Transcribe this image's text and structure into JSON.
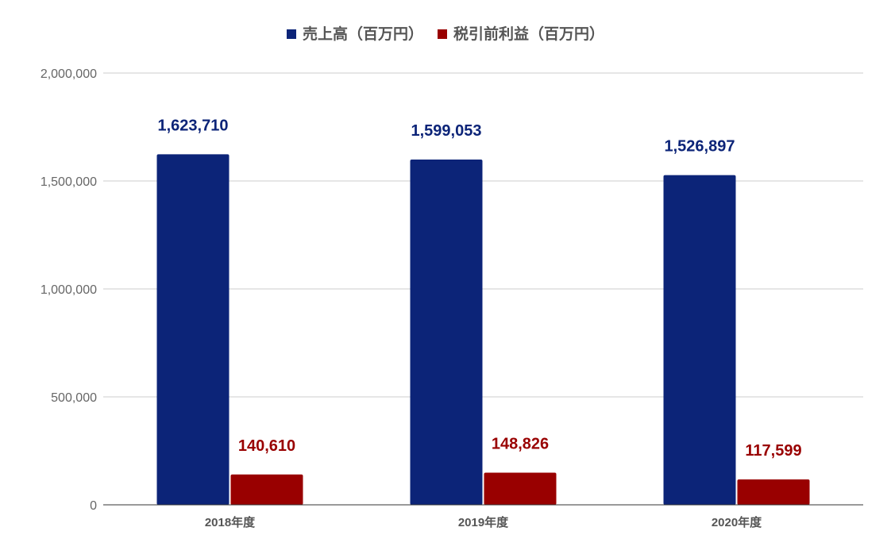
{
  "chart_data": {
    "type": "bar",
    "categories": [
      "2018年度",
      "2019年度",
      "2020年度"
    ],
    "series": [
      {
        "name": "売上高（百万円）",
        "color": "#0c2478",
        "values": [
          1623710,
          1599053,
          1526897
        ]
      },
      {
        "name": "税引前利益（百万円）",
        "color": "#990000",
        "values": [
          140610,
          148826,
          117599
        ]
      }
    ],
    "y_ticks": [
      "0",
      "500,000",
      "1,000,000",
      "1,500,000",
      "2,000,000"
    ],
    "ylim": [
      0,
      2000000
    ],
    "grid": true,
    "legend_position": "top-center",
    "data_labels": true
  }
}
